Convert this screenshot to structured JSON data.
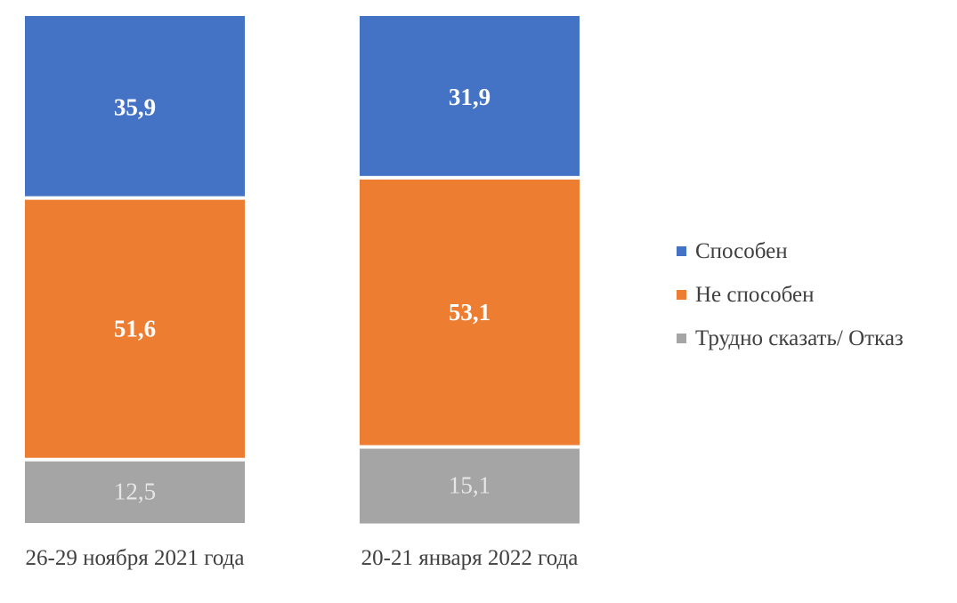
{
  "chart_data": {
    "type": "bar",
    "stacked": true,
    "normalized_percent": true,
    "categories": [
      "26-29 ноября 2021 года",
      "20-21 января 2022 года"
    ],
    "series": [
      {
        "name": "Способен",
        "values": [
          35.9,
          31.9
        ],
        "labels": [
          "35,9",
          "31,9"
        ],
        "color": "#4472C4",
        "label_color": "#FFFFFF",
        "label_bold": true
      },
      {
        "name": "Не способен",
        "values": [
          51.6,
          53.1
        ],
        "labels": [
          "51,6",
          "53,1"
        ],
        "color": "#ED7D31",
        "label_color": "#FFFFFF",
        "label_bold": true
      },
      {
        "name": "Трудно сказать/ Отказ",
        "values": [
          12.5,
          15.1
        ],
        "labels": [
          "12,5",
          "15,1"
        ],
        "color": "#A5A5A5",
        "label_color": "#E6E6E6",
        "label_bold": false
      }
    ],
    "ylim": [
      0,
      100
    ],
    "grid": false,
    "legend_position": "right",
    "title": "",
    "xlabel": "",
    "ylabel": ""
  }
}
